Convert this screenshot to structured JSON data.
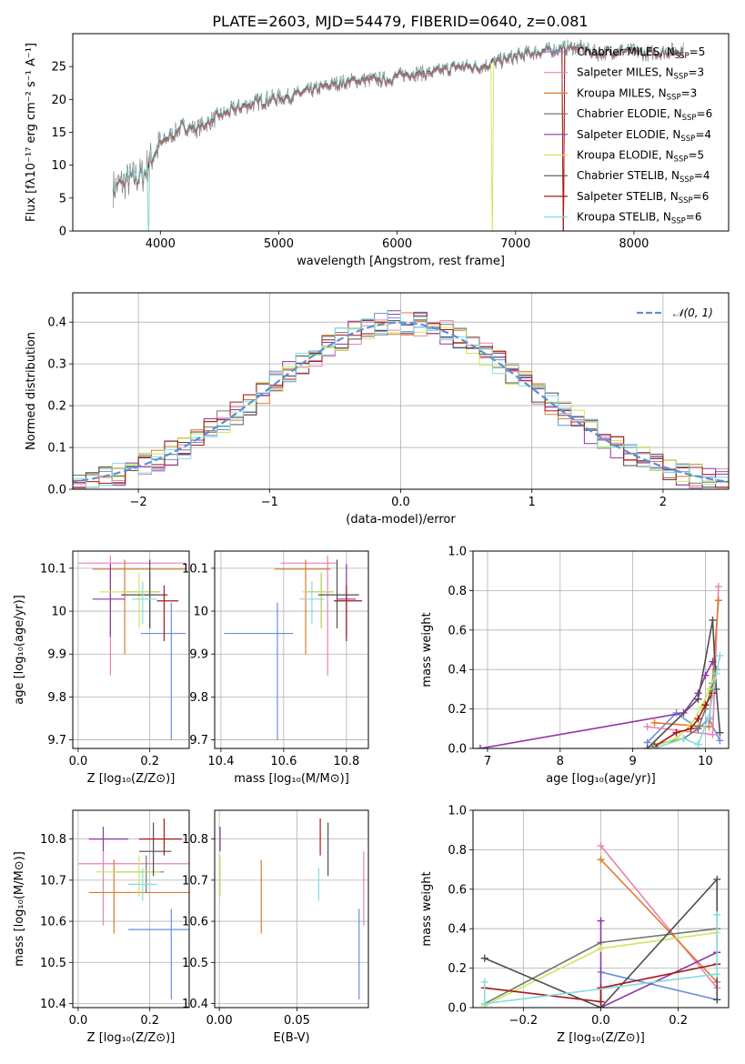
{
  "figure_title": "PLATE=2603, MJD=54479, FIBERID=0640, z=0.081",
  "colors": {
    "Chabrier MILES": "#6a8fdc",
    "Salpeter MILES": "#e982b5",
    "Kroupa MILES": "#de7b2a",
    "Chabrier ELODIE": "#707a6b",
    "Salpeter ELODIE": "#8e35a8",
    "Kroupa ELODIE": "#cce85a",
    "Chabrier STELIB": "#4f4f4f",
    "Salpeter STELIB": "#a81818",
    "Kroupa STELIB": "#86dce0"
  },
  "chart_data": [
    {
      "id": "spectrum",
      "type": "line",
      "xlabel": "wavelength [Angstrom, rest frame]",
      "ylabel": "Flux [fλ10⁻¹⁷ erg cm⁻² s⁻¹ A⁻¹]",
      "xlim": [
        3260,
        8800
      ],
      "ylim": [
        0,
        30
      ],
      "xticks": [
        4000,
        5000,
        6000,
        7000,
        8000
      ],
      "yticks": [
        0,
        5,
        10,
        15,
        20,
        25
      ],
      "legend_position": "top-right",
      "legend": [
        {
          "main": "Chabrier MILES, N",
          "sub": "SSP",
          "tail": "=5"
        },
        {
          "main": "Salpeter MILES, N",
          "sub": "SSP",
          "tail": "=3"
        },
        {
          "main": "Kroupa MILES, N",
          "sub": "SSP",
          "tail": "=3"
        },
        {
          "main": "Chabrier ELODIE, N",
          "sub": "SSP",
          "tail": "=6"
        },
        {
          "main": "Salpeter ELODIE, N",
          "sub": "SSP",
          "tail": "=4"
        },
        {
          "main": "Kroupa ELODIE, N",
          "sub": "SSP",
          "tail": "=5"
        },
        {
          "main": "Chabrier STELIB, N",
          "sub": "SSP",
          "tail": "=4"
        },
        {
          "main": "Salpeter STELIB, N",
          "sub": "SSP",
          "tail": "=6"
        },
        {
          "main": "Kroupa STELIB, N",
          "sub": "SSP",
          "tail": "=6"
        }
      ],
      "continuum": [
        [
          3600,
          6.5
        ],
        [
          3700,
          7.5
        ],
        [
          3850,
          8.5
        ],
        [
          3950,
          12
        ],
        [
          4050,
          14
        ],
        [
          4200,
          16
        ],
        [
          4300,
          15.5
        ],
        [
          4500,
          17.5
        ],
        [
          4700,
          19
        ],
        [
          4900,
          20
        ],
        [
          5100,
          20.5
        ],
        [
          5300,
          21.5
        ],
        [
          5500,
          22.5
        ],
        [
          5700,
          23
        ],
        [
          5900,
          23
        ],
        [
          6100,
          24
        ],
        [
          6300,
          24
        ],
        [
          6500,
          25
        ],
        [
          6700,
          25
        ],
        [
          6900,
          26
        ],
        [
          7100,
          27
        ],
        [
          7300,
          27.5
        ],
        [
          7500,
          28
        ],
        [
          7700,
          27
        ],
        [
          7900,
          27.5
        ],
        [
          8100,
          27
        ],
        [
          8400,
          27.5
        ]
      ],
      "dropouts": [
        {
          "model": "Kroupa ELODIE",
          "x": 3905
        },
        {
          "model": "Kroupa STELIB",
          "x": 3905
        },
        {
          "model": "Kroupa ELODIE",
          "x": 6800
        },
        {
          "model": "Chabrier ELODIE",
          "x": 7405
        },
        {
          "model": "Kroupa MILES",
          "x": 7405
        },
        {
          "model": "Salpeter STELIB",
          "x": 7405
        }
      ]
    },
    {
      "id": "residuals",
      "type": "bar",
      "xlabel": "(data-model)/error",
      "ylabel": "Normed distribution",
      "xlim": [
        -2.5,
        2.5
      ],
      "ylim": [
        0,
        0.47
      ],
      "xticks": [
        -2,
        -1,
        0,
        1,
        2
      ],
      "yticks": [
        0.0,
        0.1,
        0.2,
        0.3,
        0.4
      ],
      "grid": true,
      "legend_position": "top-right",
      "reference_curve": {
        "label": "𝒩(0, 1)",
        "mu": 0,
        "sigma": 1,
        "color": "#5b8fd6"
      },
      "bin_width": 0.1
    },
    {
      "id": "age-vs-Z",
      "type": "scatter",
      "xlabel": "Z [log₁₀(Z/Z⊙)]",
      "ylabel": "age  [log₁₀(age/yr)]",
      "xlim": [
        -0.015,
        0.31
      ],
      "ylim": [
        9.68,
        10.14
      ],
      "xticks": [
        0.0,
        0.2
      ],
      "yticks": [
        9.7,
        9.8,
        9.9,
        10.0,
        10.1
      ],
      "grid": true,
      "points": [
        {
          "model": "Chabrier MILES",
          "x": 0.26,
          "y": 9.948,
          "xerr": [
            0.175,
            0.3
          ],
          "yerr": [
            9.7,
            10.02
          ]
        },
        {
          "model": "Salpeter MILES",
          "x": 0.09,
          "y": 10.112,
          "xerr": [
            0.0,
            0.3
          ],
          "yerr": [
            9.85,
            10.13
          ]
        },
        {
          "model": "Kroupa MILES",
          "x": 0.13,
          "y": 10.098,
          "xerr": [
            0.04,
            0.3
          ],
          "yerr": [
            9.9,
            10.12
          ]
        },
        {
          "model": "Chabrier ELODIE",
          "x": 0.2,
          "y": 10.045,
          "xerr": [
            0.12,
            0.23
          ],
          "yerr": [
            9.96,
            10.09
          ]
        },
        {
          "model": "Salpeter ELODIE",
          "x": 0.09,
          "y": 10.028,
          "xerr": [
            0.04,
            0.13
          ],
          "yerr": [
            9.94,
            10.11
          ]
        },
        {
          "model": "Kroupa ELODIE",
          "x": 0.17,
          "y": 10.045,
          "xerr": [
            0.06,
            0.23
          ],
          "yerr": [
            9.96,
            10.09
          ]
        },
        {
          "model": "Chabrier STELIB",
          "x": 0.2,
          "y": 10.038,
          "xerr": [
            0.12,
            0.25
          ],
          "yerr": [
            9.96,
            10.12
          ]
        },
        {
          "model": "Salpeter STELIB",
          "x": 0.24,
          "y": 10.024,
          "xerr": [
            0.22,
            0.28
          ],
          "yerr": [
            9.93,
            10.06
          ]
        },
        {
          "model": "Kroupa STELIB",
          "x": 0.18,
          "y": 10.028,
          "xerr": [
            0.15,
            0.22
          ],
          "yerr": [
            9.97,
            10.07
          ]
        }
      ]
    },
    {
      "id": "age-vs-mass",
      "type": "scatter",
      "xlabel": "mass [log₁₀(M/M⊙)]",
      "ylabel": "",
      "xlim": [
        10.38,
        10.87
      ],
      "ylim": [
        9.68,
        10.14
      ],
      "xticks": [
        10.4,
        10.6,
        10.8
      ],
      "yticks": [
        9.7,
        9.8,
        9.9,
        10.0,
        10.1
      ],
      "grid": true,
      "points": [
        {
          "model": "Chabrier MILES",
          "x": 10.58,
          "y": 9.948,
          "xerr": [
            10.41,
            10.63
          ],
          "yerr": [
            9.7,
            10.02
          ]
        },
        {
          "model": "Salpeter MILES",
          "x": 10.74,
          "y": 10.112,
          "xerr": [
            10.59,
            10.77
          ],
          "yerr": [
            9.85,
            10.13
          ]
        },
        {
          "model": "Kroupa MILES",
          "x": 10.67,
          "y": 10.098,
          "xerr": [
            10.57,
            10.75
          ],
          "yerr": [
            9.9,
            10.12
          ]
        },
        {
          "model": "Chabrier ELODIE",
          "x": 10.72,
          "y": 10.045,
          "xerr": [
            10.67,
            10.76
          ],
          "yerr": [
            9.96,
            10.09
          ]
        },
        {
          "model": "Salpeter ELODIE",
          "x": 10.8,
          "y": 10.028,
          "xerr": [
            10.77,
            10.83
          ],
          "yerr": [
            9.94,
            10.11
          ]
        },
        {
          "model": "Kroupa ELODIE",
          "x": 10.72,
          "y": 10.045,
          "xerr": [
            10.66,
            10.76
          ],
          "yerr": [
            9.96,
            10.09
          ]
        },
        {
          "model": "Chabrier STELIB",
          "x": 10.77,
          "y": 10.038,
          "xerr": [
            10.71,
            10.84
          ],
          "yerr": [
            9.96,
            10.12
          ]
        },
        {
          "model": "Salpeter STELIB",
          "x": 10.8,
          "y": 10.024,
          "xerr": [
            10.76,
            10.85
          ],
          "yerr": [
            9.93,
            10.06
          ]
        },
        {
          "model": "Kroupa STELIB",
          "x": 10.69,
          "y": 10.028,
          "xerr": [
            10.65,
            10.73
          ],
          "yerr": [
            9.97,
            10.07
          ]
        }
      ]
    },
    {
      "id": "weight-vs-age",
      "type": "line",
      "xlabel": "age  [log₁₀(age/yr)]",
      "ylabel": "mass weight",
      "xlim": [
        6.8,
        10.32
      ],
      "ylim": [
        0,
        1
      ],
      "xticks": [
        7,
        8,
        9,
        10
      ],
      "yticks": [
        0.0,
        0.2,
        0.4,
        0.6,
        0.8,
        1.0
      ],
      "grid": true,
      "series": [
        {
          "model": "Chabrier MILES",
          "x": [
            9.2,
            9.6,
            9.9,
            10.05,
            10.2
          ],
          "y": [
            0.03,
            0.18,
            0.1,
            0.15,
            0.04
          ]
        },
        {
          "model": "Salpeter MILES",
          "x": [
            9.2,
            10.1,
            10.18
          ],
          "y": [
            0.11,
            0.07,
            0.82
          ]
        },
        {
          "model": "Kroupa MILES",
          "x": [
            9.3,
            10.05,
            10.18
          ],
          "y": [
            0.13,
            0.11,
            0.75
          ]
        },
        {
          "model": "Chabrier ELODIE",
          "x": [
            9.3,
            9.7,
            9.9,
            10.0,
            10.1,
            10.15
          ],
          "y": [
            0.02,
            0.05,
            0.1,
            0.2,
            0.33,
            0.4
          ]
        },
        {
          "model": "Salpeter ELODIE",
          "x": [
            6.9,
            9.7,
            9.9,
            10.0,
            10.1
          ],
          "y": [
            0.0,
            0.18,
            0.28,
            0.37,
            0.44
          ]
        },
        {
          "model": "Kroupa ELODIE",
          "x": [
            9.3,
            9.6,
            9.8,
            9.95,
            10.05,
            10.15
          ],
          "y": [
            0.01,
            0.05,
            0.12,
            0.21,
            0.3,
            0.38
          ]
        },
        {
          "model": "Chabrier STELIB",
          "x": [
            9.2,
            9.9,
            10.1,
            10.15,
            10.2
          ],
          "y": [
            0.0,
            0.25,
            0.65,
            0.3,
            0.08
          ]
        },
        {
          "model": "Salpeter STELIB",
          "x": [
            9.3,
            9.6,
            9.8,
            9.9,
            10.0,
            10.1
          ],
          "y": [
            0.01,
            0.08,
            0.1,
            0.15,
            0.22,
            0.28
          ]
        },
        {
          "model": "Kroupa STELIB",
          "x": [
            9.3,
            9.7,
            9.9,
            10.05,
            10.15,
            10.2
          ],
          "y": [
            0.0,
            0.05,
            0.02,
            0.16,
            0.38,
            0.47
          ]
        }
      ]
    },
    {
      "id": "mass-vs-Z",
      "type": "scatter",
      "xlabel": "Z [log₁₀(Z/Z⊙)]",
      "ylabel": "mass [log₁₀(M/M⊙)]",
      "xlim": [
        -0.015,
        0.31
      ],
      "ylim": [
        10.39,
        10.87
      ],
      "xticks": [
        0.0,
        0.2
      ],
      "yticks": [
        10.4,
        10.5,
        10.6,
        10.7,
        10.8
      ],
      "grid": true,
      "points": [
        {
          "model": "Chabrier MILES",
          "x": 0.26,
          "y": 10.58,
          "xerr": [
            0.14,
            0.32
          ],
          "yerr": [
            10.41,
            10.63
          ]
        },
        {
          "model": "Salpeter MILES",
          "x": 0.07,
          "y": 10.74,
          "xerr": [
            0.0,
            0.32
          ],
          "yerr": [
            10.59,
            10.77
          ]
        },
        {
          "model": "Kroupa MILES",
          "x": 0.1,
          "y": 10.67,
          "xerr": [
            0.03,
            0.32
          ],
          "yerr": [
            10.57,
            10.75
          ]
        },
        {
          "model": "Chabrier ELODIE",
          "x": 0.19,
          "y": 10.72,
          "xerr": [
            0.1,
            0.24
          ],
          "yerr": [
            10.67,
            10.76
          ]
        },
        {
          "model": "Salpeter ELODIE",
          "x": 0.07,
          "y": 10.8,
          "xerr": [
            0.03,
            0.14
          ],
          "yerr": [
            10.77,
            10.83
          ]
        },
        {
          "model": "Kroupa ELODIE",
          "x": 0.17,
          "y": 10.72,
          "xerr": [
            0.05,
            0.23
          ],
          "yerr": [
            10.66,
            10.76
          ]
        },
        {
          "model": "Chabrier STELIB",
          "x": 0.21,
          "y": 10.77,
          "xerr": [
            0.17,
            0.26
          ],
          "yerr": [
            10.71,
            10.84
          ]
        },
        {
          "model": "Salpeter STELIB",
          "x": 0.24,
          "y": 10.8,
          "xerr": [
            0.17,
            0.29
          ],
          "yerr": [
            10.76,
            10.85
          ]
        },
        {
          "model": "Kroupa STELIB",
          "x": 0.18,
          "y": 10.69,
          "xerr": [
            0.14,
            0.22
          ],
          "yerr": [
            10.65,
            10.73
          ]
        }
      ]
    },
    {
      "id": "mass-vs-EBV",
      "type": "scatter",
      "xlabel": "E(B-V)",
      "ylabel": "",
      "xlim": [
        -0.003,
        0.096
      ],
      "ylim": [
        10.39,
        10.87
      ],
      "xticks": [
        0.0,
        0.05
      ],
      "yticks": [
        10.4,
        10.5,
        10.6,
        10.7,
        10.8
      ],
      "grid": true,
      "points": [
        {
          "model": "Chabrier MILES",
          "x": 0.09,
          "yerr": [
            10.41,
            10.63
          ]
        },
        {
          "model": "Salpeter MILES",
          "x": 0.093,
          "yerr": [
            10.59,
            10.77
          ]
        },
        {
          "model": "Kroupa MILES",
          "x": 0.027,
          "yerr": [
            10.57,
            10.75
          ]
        },
        {
          "model": "Salpeter ELODIE",
          "x": 0.0005,
          "yerr": [
            10.77,
            10.83
          ]
        },
        {
          "model": "Kroupa ELODIE",
          "x": 0.0005,
          "yerr": [
            10.66,
            10.76
          ]
        },
        {
          "model": "Chabrier STELIB",
          "x": 0.07,
          "yerr": [
            10.71,
            10.84
          ]
        },
        {
          "model": "Salpeter STELIB",
          "x": 0.065,
          "yerr": [
            10.76,
            10.85
          ]
        },
        {
          "model": "Kroupa STELIB",
          "x": 0.064,
          "yerr": [
            10.65,
            10.73
          ]
        }
      ]
    },
    {
      "id": "weight-vs-Z",
      "type": "line",
      "xlabel": "Z [log₁₀(Z/Z⊙)]",
      "ylabel": "mass weight",
      "xlim": [
        -0.33,
        0.33
      ],
      "ylim": [
        0,
        1
      ],
      "xticks": [
        -0.2,
        0.0,
        0.2
      ],
      "yticks": [
        0.0,
        0.2,
        0.4,
        0.6,
        0.8,
        1.0
      ],
      "grid": true,
      "series": [
        {
          "model": "Chabrier MILES",
          "x": [
            0.0,
            0.3
          ],
          "y": [
            0.18,
            0.04
          ]
        },
        {
          "model": "Salpeter MILES",
          "x": [
            0.0,
            0.3
          ],
          "y": [
            0.82,
            0.1
          ]
        },
        {
          "model": "Kroupa MILES",
          "x": [
            0.0,
            0.3
          ],
          "y": [
            0.75,
            0.13
          ]
        },
        {
          "model": "Chabrier ELODIE",
          "x": [
            -0.3,
            0.0,
            0.3
          ],
          "y": [
            0.02,
            0.33,
            0.4
          ]
        },
        {
          "model": "Salpeter ELODIE",
          "x": [
            0.0,
            0.0,
            0.3
          ],
          "y": [
            0.44,
            0.0,
            0.28
          ]
        },
        {
          "model": "Kroupa ELODIE",
          "x": [
            -0.3,
            0.0,
            0.3
          ],
          "y": [
            0.01,
            0.3,
            0.38
          ]
        },
        {
          "model": "Chabrier STELIB",
          "x": [
            -0.3,
            0.0,
            0.3,
            0.3
          ],
          "y": [
            0.25,
            0.0,
            0.65,
            0.04
          ]
        },
        {
          "model": "Salpeter STELIB",
          "x": [
            -0.3,
            0.0,
            0.0,
            0.3
          ],
          "y": [
            0.1,
            0.03,
            0.1,
            0.22
          ]
        },
        {
          "model": "Kroupa STELIB",
          "x": [
            -0.3,
            -0.3,
            0.3,
            0.3
          ],
          "y": [
            0.13,
            0.02,
            0.17,
            0.47
          ]
        }
      ]
    }
  ]
}
